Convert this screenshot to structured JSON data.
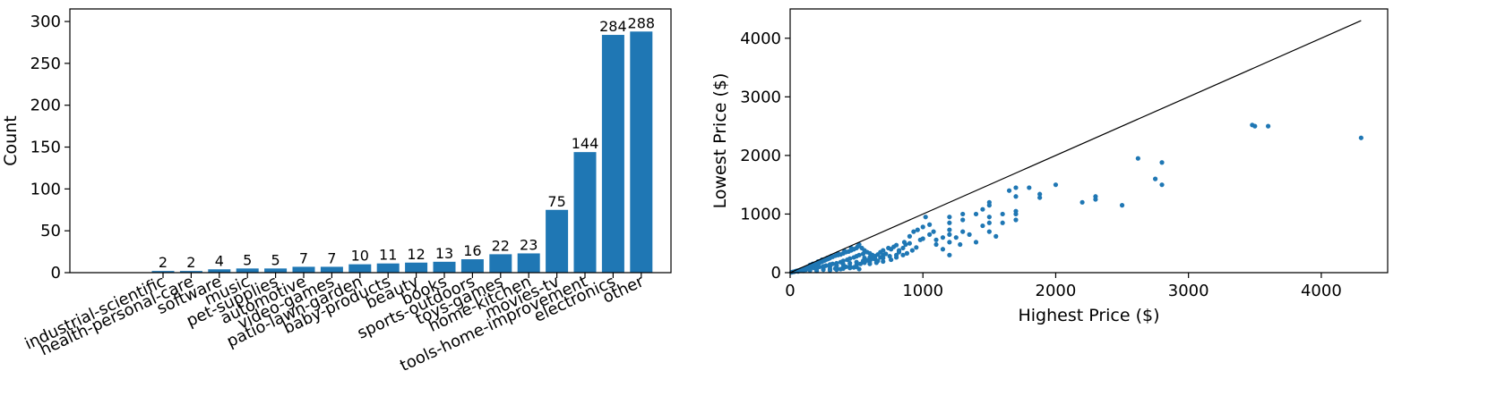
{
  "chart_data": [
    {
      "type": "bar",
      "title": "",
      "xlabel": "",
      "ylabel": "Count",
      "ylim": [
        0,
        315
      ],
      "yticks": [
        "0",
        "50",
        "100",
        "150",
        "200",
        "250",
        "300"
      ],
      "color": "#1f77b4",
      "categories": [
        "industrial-scientific",
        "health-personal-care",
        "software",
        "music",
        "pet-supplies",
        "automotive",
        "video-games",
        "patio-lawn-garden",
        "baby-products",
        "beauty",
        "books",
        "sports-outdoors",
        "toys-games",
        "home-kitchen",
        "movies-tv",
        "tools-home-improvement",
        "electronics",
        "other"
      ],
      "values": [
        2,
        2,
        4,
        5,
        5,
        7,
        7,
        10,
        11,
        12,
        13,
        16,
        22,
        23,
        75,
        144,
        284,
        288
      ],
      "data_labels": [
        "2",
        "2",
        "4",
        "5",
        "5",
        "7",
        "7",
        "10",
        "11",
        "12",
        "13",
        "16",
        "22",
        "23",
        "75",
        "144",
        "284",
        "288"
      ]
    },
    {
      "type": "scatter",
      "title": "",
      "xlabel": "Highest Price ($)",
      "ylabel": "Lowest Price ($)",
      "xlim": [
        0,
        4500
      ],
      "ylim": [
        0,
        4500
      ],
      "xticks": [
        "0",
        "1000",
        "2000",
        "3000",
        "4000"
      ],
      "yticks": [
        "0",
        "1000",
        "2000",
        "3000",
        "4000"
      ],
      "color": "#1f77b4",
      "reference_line": {
        "x": [
          0,
          4300
        ],
        "y": [
          0,
          4300
        ],
        "color": "#000000"
      },
      "points": [
        [
          10,
          5
        ],
        [
          20,
          12
        ],
        [
          30,
          15
        ],
        [
          40,
          25
        ],
        [
          50,
          30
        ],
        [
          60,
          35
        ],
        [
          70,
          40
        ],
        [
          80,
          50
        ],
        [
          90,
          55
        ],
        [
          100,
          60
        ],
        [
          110,
          70
        ],
        [
          120,
          80
        ],
        [
          130,
          85
        ],
        [
          140,
          90
        ],
        [
          150,
          100
        ],
        [
          160,
          110
        ],
        [
          170,
          120
        ],
        [
          180,
          130
        ],
        [
          190,
          140
        ],
        [
          200,
          150
        ],
        [
          210,
          160
        ],
        [
          220,
          170
        ],
        [
          230,
          180
        ],
        [
          240,
          190
        ],
        [
          250,
          200
        ],
        [
          260,
          210
        ],
        [
          270,
          220
        ],
        [
          280,
          230
        ],
        [
          290,
          240
        ],
        [
          300,
          250
        ],
        [
          320,
          270
        ],
        [
          340,
          290
        ],
        [
          360,
          300
        ],
        [
          380,
          310
        ],
        [
          400,
          330
        ],
        [
          420,
          350
        ],
        [
          440,
          360
        ],
        [
          460,
          380
        ],
        [
          480,
          400
        ],
        [
          500,
          420
        ],
        [
          60,
          20
        ],
        [
          90,
          40
        ],
        [
          120,
          50
        ],
        [
          150,
          60
        ],
        [
          180,
          80
        ],
        [
          200,
          90
        ],
        [
          220,
          100
        ],
        [
          250,
          110
        ],
        [
          270,
          120
        ],
        [
          300,
          140
        ],
        [
          320,
          150
        ],
        [
          350,
          160
        ],
        [
          380,
          180
        ],
        [
          400,
          200
        ],
        [
          430,
          220
        ],
        [
          450,
          240
        ],
        [
          480,
          260
        ],
        [
          500,
          280
        ],
        [
          520,
          300
        ],
        [
          550,
          320
        ],
        [
          100,
          30
        ],
        [
          150,
          40
        ],
        [
          200,
          60
        ],
        [
          250,
          80
        ],
        [
          300,
          100
        ],
        [
          350,
          120
        ],
        [
          400,
          140
        ],
        [
          450,
          160
        ],
        [
          500,
          180
        ],
        [
          550,
          200
        ],
        [
          200,
          30
        ],
        [
          250,
          50
        ],
        [
          300,
          60
        ],
        [
          350,
          80
        ],
        [
          400,
          90
        ],
        [
          450,
          110
        ],
        [
          500,
          130
        ],
        [
          530,
          150
        ],
        [
          560,
          170
        ],
        [
          600,
          190
        ],
        [
          300,
          40
        ],
        [
          350,
          50
        ],
        [
          400,
          70
        ],
        [
          450,
          80
        ],
        [
          500,
          100
        ],
        [
          520,
          60
        ],
        [
          480,
          90
        ],
        [
          420,
          100
        ],
        [
          380,
          60
        ],
        [
          340,
          70
        ],
        [
          150,
          130
        ],
        [
          170,
          150
        ],
        [
          210,
          190
        ],
        [
          240,
          220
        ],
        [
          280,
          250
        ],
        [
          310,
          280
        ],
        [
          360,
          330
        ],
        [
          410,
          370
        ],
        [
          460,
          420
        ],
        [
          510,
          450
        ],
        [
          520,
          480
        ],
        [
          540,
          420
        ],
        [
          560,
          380
        ],
        [
          580,
          350
        ],
        [
          600,
          330
        ],
        [
          620,
          300
        ],
        [
          640,
          280
        ],
        [
          660,
          310
        ],
        [
          680,
          350
        ],
        [
          700,
          380
        ],
        [
          560,
          250
        ],
        [
          600,
          260
        ],
        [
          640,
          230
        ],
        [
          680,
          260
        ],
        [
          700,
          300
        ],
        [
          720,
          320
        ],
        [
          740,
          420
        ],
        [
          760,
          400
        ],
        [
          780,
          440
        ],
        [
          800,
          470
        ],
        [
          580,
          210
        ],
        [
          620,
          240
        ],
        [
          660,
          200
        ],
        [
          700,
          250
        ],
        [
          750,
          280
        ],
        [
          800,
          300
        ],
        [
          820,
          380
        ],
        [
          850,
          420
        ],
        [
          870,
          480
        ],
        [
          900,
          500
        ],
        [
          600,
          150
        ],
        [
          650,
          170
        ],
        [
          700,
          190
        ],
        [
          760,
          220
        ],
        [
          800,
          260
        ],
        [
          850,
          300
        ],
        [
          880,
          330
        ],
        [
          920,
          380
        ],
        [
          950,
          430
        ],
        [
          980,
          560
        ],
        [
          820,
          350
        ],
        [
          860,
          520
        ],
        [
          900,
          620
        ],
        [
          930,
          700
        ],
        [
          960,
          730
        ],
        [
          1000,
          580
        ],
        [
          1000,
          780
        ],
        [
          1020,
          950
        ],
        [
          1050,
          650
        ],
        [
          1050,
          820
        ],
        [
          1080,
          700
        ],
        [
          1100,
          560
        ],
        [
          1100,
          480
        ],
        [
          1150,
          400
        ],
        [
          1150,
          600
        ],
        [
          1200,
          300
        ],
        [
          1200,
          520
        ],
        [
          1200,
          650
        ],
        [
          1200,
          730
        ],
        [
          1200,
          850
        ],
        [
          1200,
          950
        ],
        [
          1250,
          600
        ],
        [
          1280,
          480
        ],
        [
          1300,
          700
        ],
        [
          1300,
          900
        ],
        [
          1300,
          1000
        ],
        [
          1350,
          650
        ],
        [
          1400,
          1000
        ],
        [
          1400,
          520
        ],
        [
          1450,
          1080
        ],
        [
          1450,
          800
        ],
        [
          1500,
          850
        ],
        [
          1500,
          1150
        ],
        [
          1500,
          1200
        ],
        [
          1500,
          950
        ],
        [
          1500,
          700
        ],
        [
          1550,
          620
        ],
        [
          1600,
          1000
        ],
        [
          1600,
          850
        ],
        [
          1650,
          1400
        ],
        [
          1700,
          1450
        ],
        [
          1700,
          1300
        ],
        [
          1700,
          1050
        ],
        [
          1700,
          1000
        ],
        [
          1700,
          900
        ],
        [
          1800,
          1450
        ],
        [
          1880,
          1280
        ],
        [
          1880,
          1340
        ],
        [
          2000,
          1500
        ],
        [
          2200,
          1200
        ],
        [
          2300,
          1250
        ],
        [
          2300,
          1300
        ],
        [
          2500,
          1150
        ],
        [
          2620,
          1950
        ],
        [
          2750,
          1600
        ],
        [
          2800,
          1880
        ],
        [
          2800,
          1500
        ],
        [
          3480,
          2520
        ],
        [
          3500,
          2500
        ],
        [
          3600,
          2500
        ],
        [
          4300,
          2300
        ]
      ]
    }
  ]
}
